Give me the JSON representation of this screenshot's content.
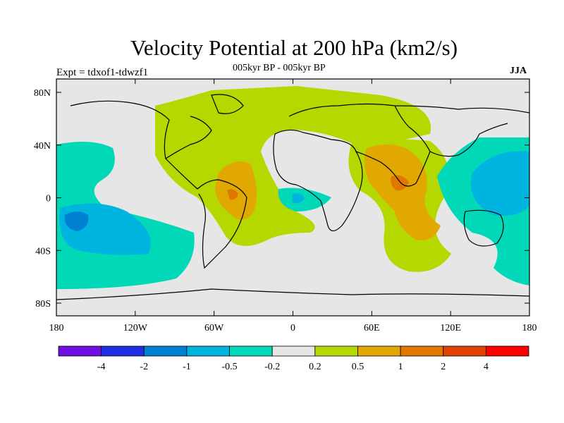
{
  "title": "Velocity Potential at 200 hPa (km2/s)",
  "subtitle": "005kyr BP - 005kyr BP",
  "experiment": "Expt = tdxof1-tdwzf1",
  "season": "JJA",
  "map": {
    "lon_ticks": [
      "180",
      "120W",
      "60W",
      "0",
      "60E",
      "120E",
      "180"
    ],
    "lat_ticks": [
      "80N",
      "40N",
      "0",
      "40S",
      "80S"
    ],
    "field_colors": {
      "background": "#e6e6e6",
      "neg_0_2_to_0_5": "#00d8b8",
      "neg_0_5_to_1": "#00b4e0",
      "neg_1_to_2": "#0080d0",
      "pos_0_2_to_0_5": "#b4d800",
      "pos_0_5_to_1": "#e0a800",
      "pos_1_to_2": "#e07800"
    }
  },
  "colorbar": {
    "labels": [
      "-4",
      "-2",
      "-1",
      "-0.5",
      "-0.2",
      "0.2",
      "0.5",
      "1",
      "2",
      "4"
    ],
    "colors": [
      "#7010e0",
      "#2030e0",
      "#0080d0",
      "#00b4e0",
      "#00d8b8",
      "#e6e6e6",
      "#b4d800",
      "#e0a800",
      "#e07800",
      "#e04000",
      "#ff0000"
    ]
  }
}
